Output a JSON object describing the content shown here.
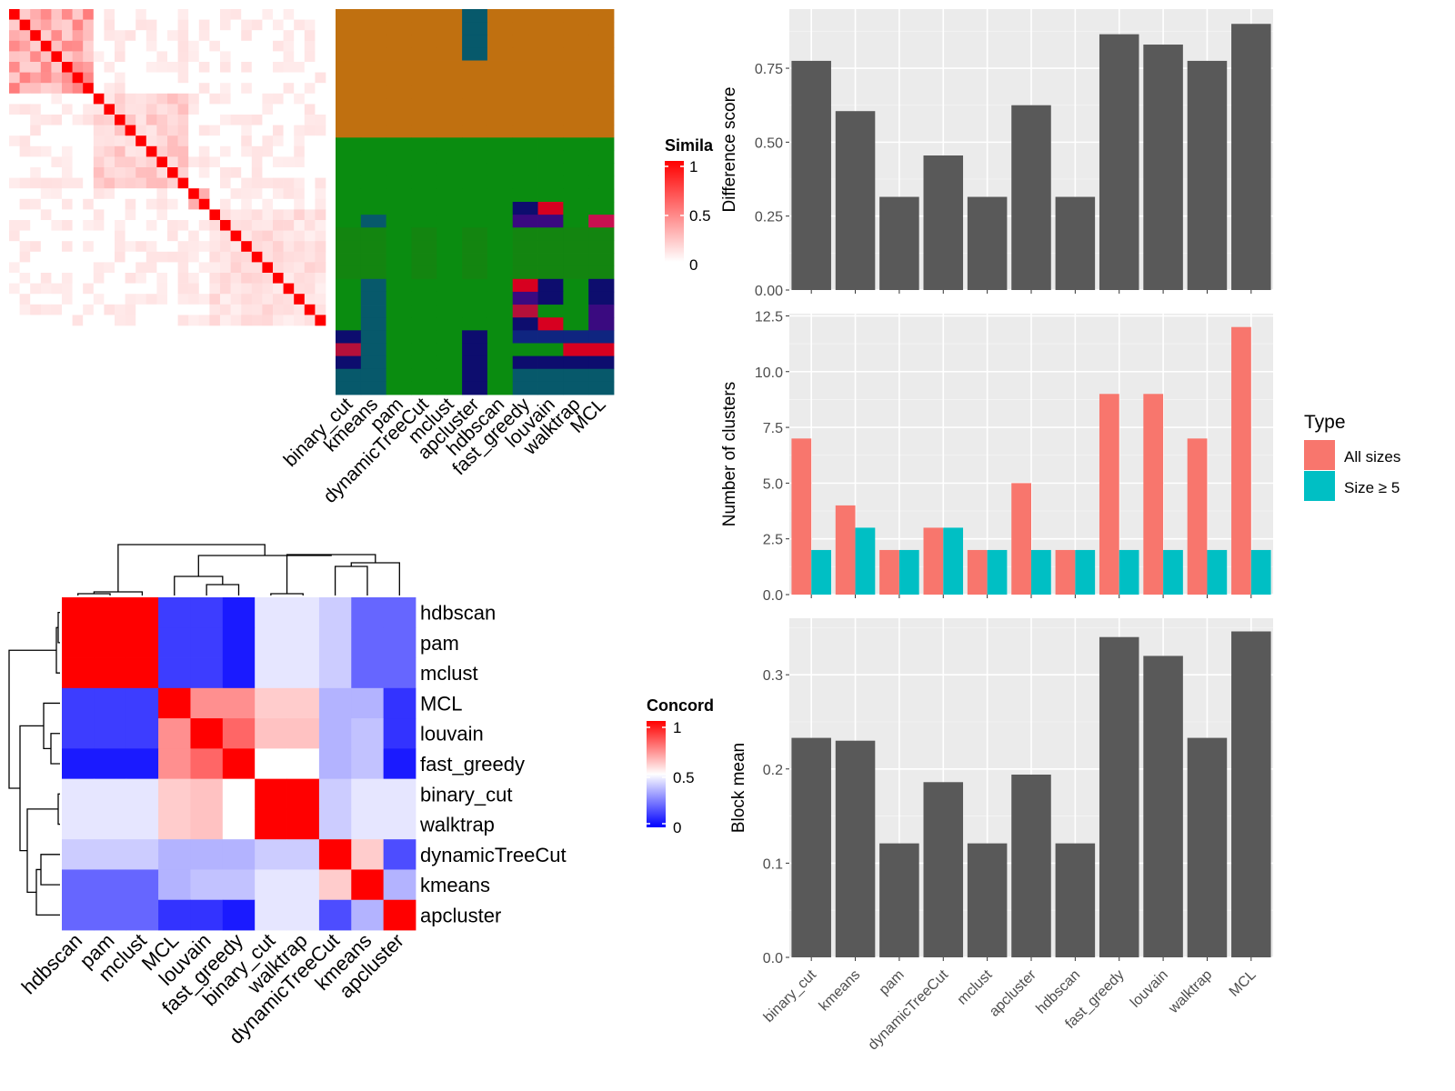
{
  "methods": [
    "binary_cut",
    "kmeans",
    "pam",
    "dynamicTreeCut",
    "mclust",
    "apcluster",
    "hdbscan",
    "fast_greedy",
    "louvain",
    "walktrap",
    "MCL"
  ],
  "legends": {
    "similarity": {
      "title": "Simila",
      "ticks": [
        "1",
        "0.5",
        "0"
      ]
    },
    "concordance": {
      "title": "Concord",
      "ticks": [
        "1",
        "0.5",
        "0"
      ]
    },
    "type": {
      "title": "Type",
      "items": [
        "All sizes",
        "Size ≥ 5"
      ],
      "colors": [
        "#F8766D",
        "#00BFC4"
      ]
    }
  },
  "colors": {
    "bar": "#595959",
    "panel": "#EBEBEB",
    "red": "#FF0000"
  },
  "chart_data": [
    {
      "type": "heatmap",
      "id": "similarity_matrix",
      "n": 30,
      "blocks": [
        [
          0,
          8
        ],
        [
          8,
          17
        ],
        [
          17,
          19
        ],
        [
          19,
          30
        ]
      ],
      "within_block_similarity": [
        0.35,
        0.18,
        0.25,
        0.12
      ],
      "color_scale": {
        "min": 0,
        "max": 1,
        "low": "#ffffff",
        "high": "#FF0000"
      }
    },
    {
      "type": "heatmap",
      "id": "cluster_assignment",
      "columns": [
        "binary_cut",
        "kmeans",
        "pam",
        "dynamicTreeCut",
        "mclust",
        "apcluster",
        "hdbscan",
        "fast_greedy",
        "louvain",
        "walktrap",
        "MCL"
      ],
      "rows": 30
    },
    {
      "type": "heatmap",
      "id": "concordance_matrix",
      "order": [
        "hdbscan",
        "pam",
        "mclust",
        "MCL",
        "louvain",
        "fast_greedy",
        "binary_cut",
        "walktrap",
        "dynamicTreeCut",
        "kmeans",
        "apcluster"
      ],
      "values": [
        [
          1,
          1,
          1,
          0.12,
          0.12,
          0.05,
          0.45,
          0.45,
          0.4,
          0.2,
          0.2
        ],
        [
          1,
          1,
          1,
          0.12,
          0.12,
          0.05,
          0.45,
          0.45,
          0.4,
          0.2,
          0.2
        ],
        [
          1,
          1,
          1,
          0.12,
          0.12,
          0.05,
          0.45,
          0.45,
          0.4,
          0.2,
          0.2
        ],
        [
          0.12,
          0.12,
          0.12,
          1,
          0.72,
          0.72,
          0.6,
          0.6,
          0.35,
          0.35,
          0.1
        ],
        [
          0.12,
          0.12,
          0.12,
          0.72,
          1,
          0.8,
          0.62,
          0.62,
          0.35,
          0.38,
          0.1
        ],
        [
          0.05,
          0.05,
          0.05,
          0.72,
          0.8,
          1,
          0.5,
          0.5,
          0.35,
          0.38,
          0.05
        ],
        [
          0.45,
          0.45,
          0.45,
          0.6,
          0.62,
          0.5,
          1,
          1,
          0.4,
          0.45,
          0.45
        ],
        [
          0.45,
          0.45,
          0.45,
          0.6,
          0.62,
          0.5,
          1,
          1,
          0.4,
          0.45,
          0.45
        ],
        [
          0.4,
          0.4,
          0.4,
          0.35,
          0.35,
          0.35,
          0.4,
          0.4,
          1,
          0.6,
          0.15
        ],
        [
          0.2,
          0.2,
          0.2,
          0.35,
          0.38,
          0.38,
          0.45,
          0.45,
          0.6,
          1,
          0.35
        ],
        [
          0.2,
          0.2,
          0.2,
          0.1,
          0.1,
          0.05,
          0.45,
          0.45,
          0.15,
          0.35,
          1
        ]
      ],
      "color_scale": {
        "min": 0,
        "mid": 0.5,
        "max": 1,
        "low": "#0000FF",
        "midColor": "#ffffff",
        "high": "#FF0000"
      }
    },
    {
      "type": "bar",
      "id": "difference_score",
      "categories": [
        "binary_cut",
        "kmeans",
        "pam",
        "dynamicTreeCut",
        "mclust",
        "apcluster",
        "hdbscan",
        "fast_greedy",
        "louvain",
        "walktrap",
        "MCL"
      ],
      "values": [
        0.775,
        0.605,
        0.315,
        0.455,
        0.315,
        0.625,
        0.315,
        0.865,
        0.83,
        0.775,
        0.9
      ],
      "ylabel": "Difference score",
      "ylim": [
        0,
        0.95
      ],
      "yticks": [
        "0.00",
        "0.25",
        "0.50",
        "0.75"
      ]
    },
    {
      "type": "bar",
      "id": "number_of_clusters",
      "categories": [
        "binary_cut",
        "kmeans",
        "pam",
        "dynamicTreeCut",
        "mclust",
        "apcluster",
        "hdbscan",
        "fast_greedy",
        "louvain",
        "walktrap",
        "MCL"
      ],
      "series": [
        {
          "name": "All sizes",
          "values": [
            7,
            4,
            2,
            3,
            2,
            5,
            2,
            9,
            9,
            7,
            12
          ]
        },
        {
          "name": "Size ≥ 5",
          "values": [
            2,
            3,
            2,
            3,
            2,
            2,
            2,
            2,
            2,
            2,
            2
          ]
        }
      ],
      "ylabel": "Number of clusters",
      "ylim": [
        0,
        12.6
      ],
      "yticks": [
        "0.0",
        "2.5",
        "5.0",
        "7.5",
        "10.0",
        "12.5"
      ]
    },
    {
      "type": "bar",
      "id": "block_mean",
      "categories": [
        "binary_cut",
        "kmeans",
        "pam",
        "dynamicTreeCut",
        "mclust",
        "apcluster",
        "hdbscan",
        "fast_greedy",
        "louvain",
        "walktrap",
        "MCL"
      ],
      "values": [
        0.233,
        0.23,
        0.121,
        0.186,
        0.121,
        0.194,
        0.121,
        0.34,
        0.32,
        0.233,
        0.346
      ],
      "ylabel": "Block mean",
      "ylim": [
        0,
        0.36
      ],
      "yticks": [
        "0.0",
        "0.1",
        "0.2",
        "0.3"
      ]
    }
  ]
}
